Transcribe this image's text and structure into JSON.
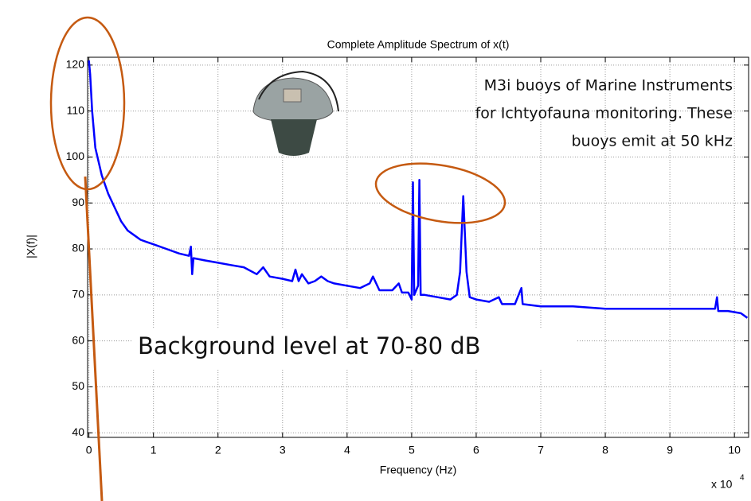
{
  "chart_data": {
    "type": "line",
    "title": "Complete Amplitude Spectrum of x(t)",
    "x_label": "Frequency (Hz)",
    "y_label": "|X(f)|",
    "x_multiplier": "x 10",
    "x_multiplier_exponent": "4",
    "annotation_lines": [
      "M3i buoys of Marine Instruments",
      "for Ichtyofauna monitoring. These",
      "buoys emit at 50 kHz"
    ],
    "background_note": "Background level at 70-80 dB",
    "grid": true,
    "xlim": [
      -200,
      102200
    ],
    "ylim": [
      39,
      121.7
    ],
    "xticks": [
      {
        "value": 0,
        "label": "0"
      },
      {
        "value": 10000,
        "label": "1"
      },
      {
        "value": 20000,
        "label": "2"
      },
      {
        "value": 30000,
        "label": "3"
      },
      {
        "value": 40000,
        "label": "4"
      },
      {
        "value": 50000,
        "label": "5"
      },
      {
        "value": 60000,
        "label": "6"
      },
      {
        "value": 70000,
        "label": "7"
      },
      {
        "value": 80000,
        "label": "8"
      },
      {
        "value": 90000,
        "label": "9"
      },
      {
        "value": 100000,
        "label": "10"
      }
    ],
    "yticks": [
      40,
      50,
      60,
      70,
      80,
      90,
      100,
      110,
      120
    ],
    "series": [
      {
        "color": "#0000ff",
        "x": [
          0,
          200,
          500,
          1000,
          2000,
          3000,
          4000,
          5000,
          6000,
          7000,
          8000,
          9000,
          10000,
          12000,
          14000,
          15500,
          15800,
          16000,
          16200,
          18000,
          20000,
          22000,
          24000,
          26000,
          27000,
          28000,
          30000,
          31500,
          32000,
          32500,
          33000,
          34000,
          35000,
          36000,
          37000,
          38000,
          40000,
          42000,
          43500,
          44000,
          45000,
          47000,
          48000,
          48500,
          49500,
          50000,
          50200,
          50400,
          51000,
          51200,
          51400,
          52000,
          54000,
          56000,
          57000,
          57500,
          58000,
          58500,
          59000,
          60000,
          62000,
          63500,
          64000,
          66000,
          67000,
          67200,
          70000,
          75000,
          80000,
          85000,
          90000,
          95000,
          97000,
          97300,
          97500,
          99000,
          101000,
          102000
        ],
        "values": [
          121,
          118,
          110,
          102,
          96,
          92,
          89,
          86,
          84,
          83,
          82,
          81.5,
          81,
          80,
          79,
          78.5,
          80.5,
          74.5,
          78,
          77.5,
          77,
          76.5,
          76,
          74.5,
          76,
          74,
          73.5,
          73,
          75.5,
          73,
          74.5,
          72.5,
          73,
          74,
          73,
          72.5,
          72,
          71.5,
          72.5,
          74,
          71,
          71,
          72.5,
          70.5,
          70.5,
          69,
          94.5,
          70,
          72,
          95,
          70,
          70,
          69.5,
          69,
          70,
          75,
          91.5,
          75,
          69.5,
          69,
          68.5,
          69.5,
          68,
          68,
          71.5,
          68,
          67.5,
          67.5,
          67,
          67,
          67,
          67,
          67,
          69.5,
          66.5,
          66.5,
          66,
          65
        ]
      }
    ]
  }
}
